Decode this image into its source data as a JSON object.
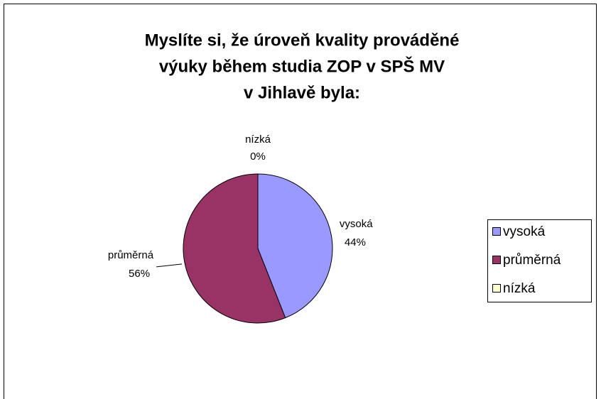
{
  "chart_data": {
    "type": "pie",
    "title": [
      "Myslíte si, že úroveň kvality prováděné",
      "výuky během studia ZOP v SPŠ MV",
      "v Jihlavě byla:"
    ],
    "categories": [
      "vysoká",
      "průměrná",
      "nízká"
    ],
    "values": [
      44,
      56,
      0
    ],
    "value_labels": [
      "44%",
      "56%",
      "0%"
    ],
    "colors": [
      "#9999ff",
      "#993366",
      "#ffffcc"
    ],
    "legend": "right"
  }
}
